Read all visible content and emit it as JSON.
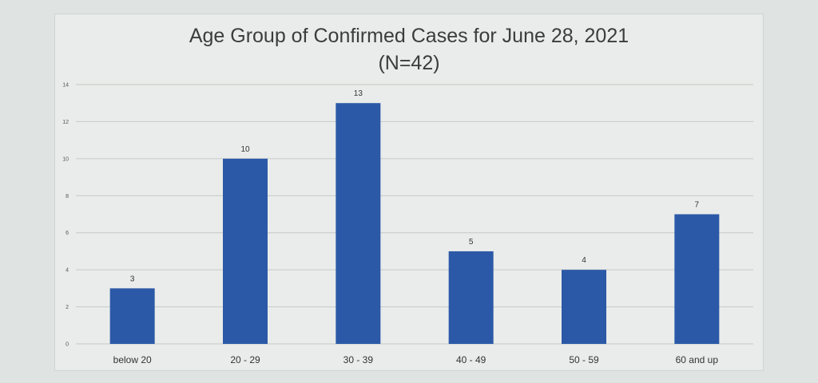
{
  "chart_data": {
    "type": "bar",
    "title": "Age Group of Confirmed Cases for June 28, 2021",
    "subtitle": "(N=42)",
    "categories": [
      "below 20",
      "20 - 29",
      "30 - 39",
      "40 - 49",
      "50 - 59",
      "60 and up"
    ],
    "values": [
      3,
      10,
      13,
      5,
      4,
      7
    ],
    "ylim": [
      0,
      14
    ],
    "yticks": [
      0,
      2,
      4,
      6,
      8,
      10,
      12,
      14
    ],
    "grid": true,
    "xlabel": "",
    "ylabel": "",
    "bar_color": "#2c59a7",
    "gridline_color": "#c4cac7"
  }
}
